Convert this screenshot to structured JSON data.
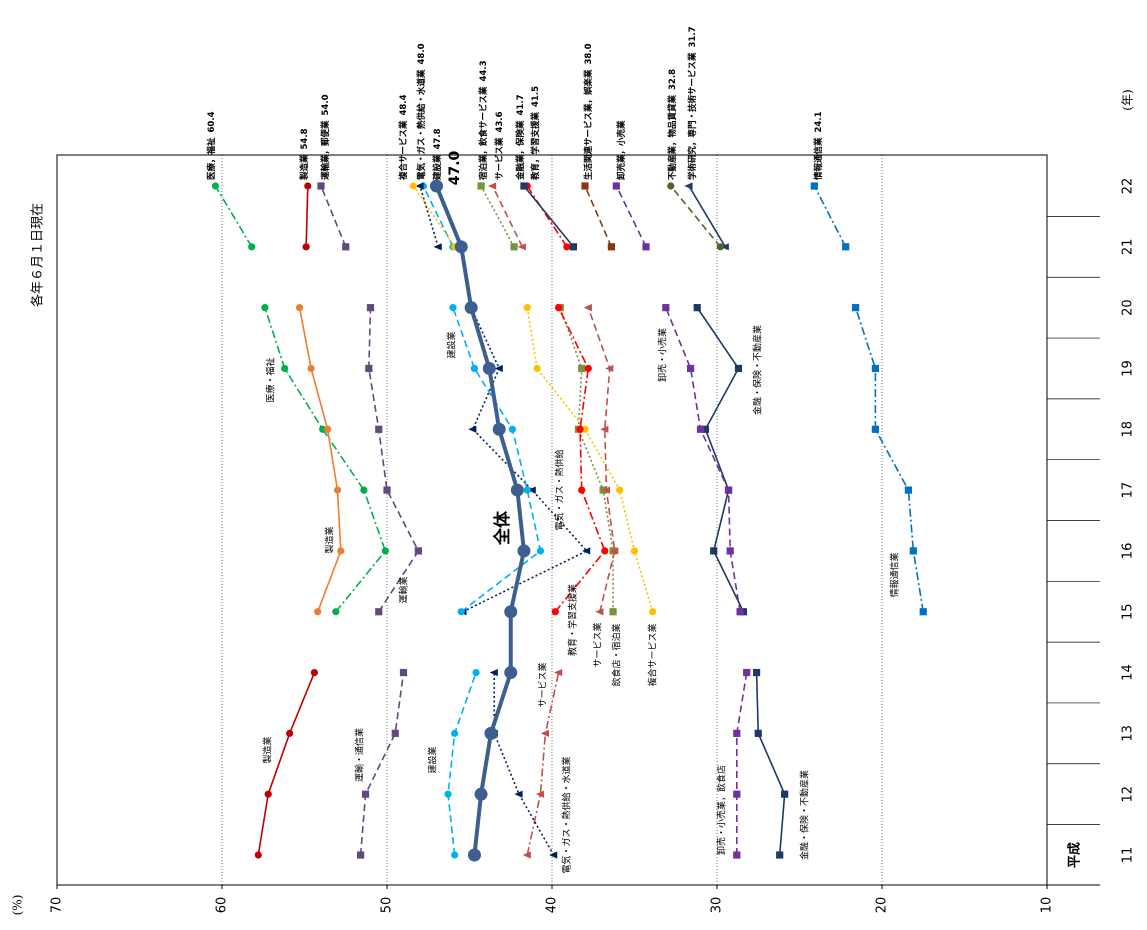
{
  "chart_data": {
    "type": "line",
    "subtitle": "各年６月１日現在",
    "x_label": "(年)",
    "y_label": "(%)",
    "era": "平成",
    "categories": [
      "11",
      "12",
      "13",
      "14",
      "15",
      "16",
      "17",
      "18",
      "19",
      "20",
      "21",
      "22"
    ],
    "ylim": [
      10,
      70
    ],
    "yticks": [
      70,
      60,
      50,
      40,
      30,
      20,
      10
    ],
    "grid": true,
    "series": [
      {
        "name": "全体",
        "color": "#3d5f8f",
        "dash": "solid",
        "marker": "circle",
        "width": 4,
        "values": [
          44.7,
          44.3,
          43.7,
          42.5,
          42.5,
          41.7,
          42.1,
          43.2,
          43.8,
          44.9,
          45.5,
          47.0
        ],
        "value_labels": [
          null,
          null,
          null,
          null,
          null,
          null,
          null,
          null,
          null,
          null,
          null,
          "47.0"
        ]
      },
      {
        "name": "製造業",
        "color": "#c00000",
        "dash": "solid",
        "marker": "circle",
        "values": [
          57.8,
          57.2,
          55.9,
          54.4,
          null,
          null,
          null,
          null,
          null,
          null,
          null,
          null
        ]
      },
      {
        "name": "運輸・通信業",
        "color": "#604a7b",
        "dash": "dashed",
        "marker": "square",
        "values": [
          51.6,
          51.3,
          49.5,
          49.0,
          null,
          null,
          null,
          null,
          null,
          null,
          null,
          null
        ]
      },
      {
        "name": "建設業",
        "color": "#00b0f0",
        "dash": "dashed",
        "marker": "circle",
        "values": [
          45.9,
          46.3,
          45.9,
          44.6,
          null,
          null,
          null,
          null,
          null,
          null,
          null,
          null
        ]
      },
      {
        "name": "電気・ガス・熱供給・水道業",
        "color": "#002060",
        "dash": "dotted",
        "marker": "triangle",
        "values": [
          39.9,
          42.0,
          43.5,
          43.5,
          null,
          null,
          null,
          null,
          null,
          null,
          null,
          null
        ]
      },
      {
        "name": "サービス業",
        "color": "#c0504d",
        "dash": "dashdot",
        "marker": "triangle",
        "values": [
          41.5,
          40.7,
          40.4,
          39.6,
          null,
          null,
          null,
          null,
          null,
          null,
          null,
          null
        ]
      },
      {
        "name": "卸売・小売業，飲食店",
        "color": "#7030a0",
        "dash": "dashed",
        "marker": "square",
        "values": [
          28.8,
          28.8,
          28.8,
          28.2,
          null,
          null,
          null,
          null,
          null,
          null,
          null,
          null
        ]
      },
      {
        "name": "金融・保険・不動産業",
        "color": "#1f3864",
        "dash": "solid",
        "marker": "square",
        "values": [
          26.2,
          25.9,
          27.5,
          27.6,
          null,
          null,
          null,
          null,
          null,
          null,
          null,
          null
        ]
      },
      {
        "name": "製造業",
        "color": "#ed7d31",
        "dash": "solid",
        "marker": "circle",
        "values": [
          null,
          null,
          null,
          null,
          54.2,
          52.8,
          53.0,
          53.6,
          54.6,
          55.3,
          null,
          null
        ]
      },
      {
        "name": "運輸業",
        "color": "#604a7b",
        "dash": "dashed",
        "marker": "square",
        "values": [
          null,
          null,
          null,
          null,
          50.5,
          48.1,
          50.0,
          50.5,
          51.1,
          51.0,
          null,
          null
        ]
      },
      {
        "name": "建設業",
        "color": "#00b0f0",
        "dash": "dashed",
        "marker": "circle",
        "values": [
          null,
          null,
          null,
          null,
          45.5,
          40.7,
          41.5,
          42.4,
          44.7,
          46.0,
          null,
          null
        ]
      },
      {
        "name": "電気・ガス・熱供給",
        "color": "#002060",
        "dash": "dotted",
        "marker": "triangle",
        "values": [
          null,
          null,
          null,
          null,
          45.4,
          37.9,
          41.2,
          44.8,
          43.2,
          44.9,
          null,
          null
        ]
      },
      {
        "name": "医療・福祉",
        "color": "#00b050",
        "dash": "dashdot",
        "marker": "circle",
        "values": [
          null,
          null,
          null,
          null,
          53.1,
          50.1,
          51.4,
          53.9,
          56.2,
          57.4,
          null,
          null
        ]
      },
      {
        "name": "教育・学習支援業",
        "color": "#ff0000",
        "dash": "dashdot",
        "marker": "circle",
        "values": [
          null,
          null,
          null,
          null,
          39.8,
          36.8,
          38.2,
          38.3,
          37.8,
          39.6,
          null,
          null
        ]
      },
      {
        "name": "サービス業",
        "color": "#c0504d",
        "dash": "dashed",
        "marker": "triangle",
        "values": [
          null,
          null,
          null,
          null,
          37.1,
          36.2,
          36.7,
          36.8,
          36.5,
          37.8,
          null,
          null
        ]
      },
      {
        "name": "飲食店・宿泊業",
        "color": "#77933c",
        "dash": "dotted",
        "marker": "square",
        "values": [
          null,
          null,
          null,
          null,
          36.3,
          36.3,
          36.9,
          38.4,
          38.2,
          39.5,
          null,
          null
        ]
      },
      {
        "name": "複合サービス業",
        "color": "#ffc000",
        "dash": "dotted",
        "marker": "circle",
        "values": [
          null,
          null,
          null,
          null,
          33.9,
          35.0,
          35.9,
          38.0,
          40.9,
          41.5,
          null,
          null
        ]
      },
      {
        "name": "卸売・小売業",
        "color": "#7030a0",
        "dash": "dashed",
        "marker": "square",
        "values": [
          null,
          null,
          null,
          null,
          28.6,
          29.2,
          29.3,
          31.0,
          31.6,
          33.1,
          null,
          null
        ]
      },
      {
        "name": "金融・保険・不動産業",
        "color": "#1f3864",
        "dash": "solid",
        "marker": "square",
        "values": [
          null,
          null,
          null,
          null,
          28.4,
          30.2,
          29.3,
          30.7,
          28.7,
          31.2,
          null,
          null
        ]
      },
      {
        "name": "情報通信業",
        "color": "#0070c0",
        "dash": "dashdot",
        "marker": "square",
        "values": [
          null,
          null,
          null,
          null,
          17.5,
          18.1,
          18.4,
          20.4,
          20.4,
          21.6,
          null,
          null
        ]
      },
      {
        "name": "医療，福祉",
        "color": "#00b050",
        "dash": "dashdot",
        "marker": "circle",
        "values": [
          null,
          null,
          null,
          null,
          null,
          null,
          null,
          null,
          null,
          null,
          58.2,
          60.4
        ],
        "value_labels": [
          null,
          null,
          null,
          null,
          null,
          null,
          null,
          null,
          null,
          null,
          null,
          "60.4"
        ]
      },
      {
        "name": "製造業",
        "color": "#c00000",
        "dash": "solid",
        "marker": "circle",
        "values": [
          null,
          null,
          null,
          null,
          null,
          null,
          null,
          null,
          null,
          null,
          54.9,
          54.8
        ],
        "value_labels": [
          null,
          null,
          null,
          null,
          null,
          null,
          null,
          null,
          null,
          null,
          null,
          "54.8"
        ]
      },
      {
        "name": "運輸業，郵便業",
        "color": "#604a7b",
        "dash": "dashed",
        "marker": "square",
        "values": [
          null,
          null,
          null,
          null,
          null,
          null,
          null,
          null,
          null,
          null,
          52.5,
          54.0
        ],
        "value_labels": [
          null,
          null,
          null,
          null,
          null,
          null,
          null,
          null,
          null,
          null,
          null,
          "54.0"
        ]
      },
      {
        "name": "複合サービス業",
        "color": "#ffc000",
        "dash": "dotted",
        "marker": "circle",
        "values": [
          null,
          null,
          null,
          null,
          null,
          null,
          null,
          null,
          null,
          null,
          45.9,
          48.4
        ],
        "value_labels": [
          null,
          null,
          null,
          null,
          null,
          null,
          null,
          null,
          null,
          null,
          null,
          "48.4"
        ]
      },
      {
        "name": "電気・ガス・熱供給・水道業",
        "color": "#002060",
        "dash": "dotted",
        "marker": "triangle",
        "values": [
          null,
          null,
          null,
          null,
          null,
          null,
          null,
          null,
          null,
          null,
          46.9,
          48.0
        ],
        "value_labels": [
          null,
          null,
          null,
          null,
          null,
          null,
          null,
          null,
          null,
          null,
          null,
          "48.0"
        ]
      },
      {
        "name": "建設業",
        "color": "#00b0f0",
        "dash": "dashed",
        "marker": "circle",
        "values": [
          null,
          null,
          null,
          null,
          null,
          null,
          null,
          null,
          null,
          null,
          46.0,
          47.8
        ],
        "value_labels": [
          null,
          null,
          null,
          null,
          null,
          null,
          null,
          null,
          null,
          null,
          null,
          "47.8"
        ]
      },
      {
        "name": "宿泊業，飲食サービス業",
        "color": "#77933c",
        "dash": "dotted",
        "marker": "square",
        "values": [
          null,
          null,
          null,
          null,
          null,
          null,
          null,
          null,
          null,
          null,
          42.3,
          44.3
        ],
        "value_labels": [
          null,
          null,
          null,
          null,
          null,
          null,
          null,
          null,
          null,
          null,
          null,
          "44.3"
        ]
      },
      {
        "name": "サービス業",
        "color": "#c0504d",
        "dash": "dashed",
        "marker": "triangle",
        "values": [
          null,
          null,
          null,
          null,
          null,
          null,
          null,
          null,
          null,
          null,
          41.8,
          43.6
        ],
        "value_labels": [
          null,
          null,
          null,
          null,
          null,
          null,
          null,
          null,
          null,
          null,
          null,
          "43.6"
        ]
      },
      {
        "name": "金融業，保険業",
        "color": "#1f3864",
        "dash": "solid",
        "marker": "square",
        "values": [
          null,
          null,
          null,
          null,
          null,
          null,
          null,
          null,
          null,
          null,
          38.7,
          41.7
        ],
        "value_labels": [
          null,
          null,
          null,
          null,
          null,
          null,
          null,
          null,
          null,
          null,
          null,
          "41.7"
        ]
      },
      {
        "name": "教育，学習支援業",
        "color": "#ff0000",
        "dash": "dashdot",
        "marker": "circle",
        "values": [
          null,
          null,
          null,
          null,
          null,
          null,
          null,
          null,
          null,
          null,
          39.1,
          41.5
        ],
        "value_labels": [
          null,
          null,
          null,
          null,
          null,
          null,
          null,
          null,
          null,
          null,
          null,
          "41.5"
        ]
      },
      {
        "name": "生活関連サービス業，娯楽業",
        "color": "#843c0c",
        "dash": "dashed",
        "marker": "square",
        "values": [
          null,
          null,
          null,
          null,
          null,
          null,
          null,
          null,
          null,
          null,
          36.4,
          38.0
        ],
        "value_labels": [
          null,
          null,
          null,
          null,
          null,
          null,
          null,
          null,
          null,
          null,
          null,
          "38.0"
        ]
      },
      {
        "name": "卸売業，小売業",
        "color": "#7030a0",
        "dash": "dashed",
        "marker": "square",
        "values": [
          null,
          null,
          null,
          null,
          null,
          null,
          null,
          null,
          null,
          null,
          34.3,
          36.1
        ]
      },
      {
        "name": "不動産業，物品賃貸業",
        "color": "#4f6228",
        "dash": "dashed",
        "marker": "circle",
        "values": [
          null,
          null,
          null,
          null,
          null,
          null,
          null,
          null,
          null,
          null,
          29.8,
          32.8
        ],
        "value_labels": [
          null,
          null,
          null,
          null,
          null,
          null,
          null,
          null,
          null,
          null,
          null,
          "32.8"
        ]
      },
      {
        "name": "学術研究，専門・技術サービス業",
        "color": "#1f3864",
        "dash": "solid",
        "marker": "triangle",
        "values": [
          null,
          null,
          null,
          null,
          null,
          null,
          null,
          null,
          null,
          null,
          29.5,
          31.7
        ],
        "value_labels": [
          null,
          null,
          null,
          null,
          null,
          null,
          null,
          null,
          null,
          null,
          null,
          "31.7"
        ]
      },
      {
        "name": "情報通信業",
        "color": "#0070c0",
        "dash": "dashdot",
        "marker": "square",
        "values": [
          null,
          null,
          null,
          null,
          null,
          null,
          null,
          null,
          null,
          null,
          22.2,
          24.1
        ],
        "value_labels": [
          null,
          null,
          null,
          null,
          null,
          null,
          null,
          null,
          null,
          null,
          null,
          "24.1"
        ]
      }
    ]
  }
}
